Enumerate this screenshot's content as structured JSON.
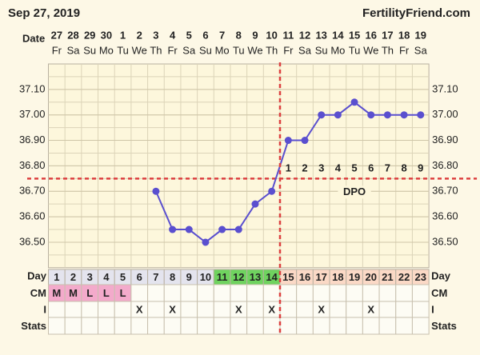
{
  "chart_data": {
    "type": "line",
    "title": "Sep 27, 2019",
    "source": "FertilityFriend.com",
    "date_label": "Date",
    "dates": [
      27,
      28,
      29,
      30,
      1,
      2,
      3,
      4,
      5,
      6,
      7,
      8,
      9,
      10,
      11,
      12,
      13,
      14,
      15,
      16,
      17,
      18,
      19
    ],
    "weekdays": [
      "Fr",
      "Sa",
      "Su",
      "Mo",
      "Tu",
      "We",
      "Th",
      "Fr",
      "Sa",
      "Su",
      "Mo",
      "Tu",
      "We",
      "Th",
      "Fr",
      "Sa",
      "Su",
      "Mo",
      "Tu",
      "We",
      "Th",
      "Fr",
      "Sa"
    ],
    "x_label": "Day",
    "x": [
      1,
      2,
      3,
      4,
      5,
      6,
      7,
      8,
      9,
      10,
      11,
      12,
      13,
      14,
      15,
      16,
      17,
      18,
      19,
      20,
      21,
      22,
      23
    ],
    "series": [
      {
        "color": "#5a4fcf",
        "values": [
          null,
          null,
          null,
          null,
          null,
          null,
          36.7,
          36.55,
          36.55,
          36.5,
          36.55,
          36.55,
          36.65,
          36.7,
          36.9,
          36.9,
          37.0,
          37.0,
          37.05,
          37.0,
          37.0,
          37.0,
          37.0
        ]
      }
    ],
    "ylim": [
      36.4,
      37.2
    ],
    "yticks": [
      {
        "value": 36.5,
        "label": "36.50"
      },
      {
        "value": 36.6,
        "label": "36.60"
      },
      {
        "value": 36.7,
        "label": "36.70"
      },
      {
        "value": 36.8,
        "label": "36.80"
      },
      {
        "value": 36.9,
        "label": "36.90"
      },
      {
        "value": 37.0,
        "label": "37.00"
      },
      {
        "value": 37.1,
        "label": "37.10"
      }
    ],
    "coverline": 36.75,
    "coverline_color": "#dd4040",
    "ovulation_day": 14,
    "dpo_label": "DPO",
    "dpo": [
      1,
      2,
      3,
      4,
      5,
      6,
      7,
      8,
      9
    ],
    "day_row_color": "#e4e4ee",
    "day_highlights": [
      {
        "from": 11,
        "to": 14,
        "color": "#6fd35f"
      },
      {
        "from": 15,
        "to": 23,
        "color": "#fbd9c6"
      }
    ],
    "rows": [
      {
        "name": "CM",
        "cell_color": "#f3aacb",
        "values": [
          "M",
          "M",
          "L",
          "L",
          "L",
          null,
          null,
          null,
          null,
          null,
          null,
          null,
          null,
          null,
          null,
          null,
          null,
          null,
          null,
          null,
          null,
          null,
          null
        ]
      },
      {
        "name": "I",
        "values": [
          null,
          null,
          null,
          null,
          null,
          "X",
          null,
          "X",
          null,
          null,
          null,
          "X",
          null,
          "X",
          null,
          null,
          "X",
          null,
          null,
          "X",
          null,
          null,
          null
        ]
      },
      {
        "name": "Stats",
        "values": [
          null,
          null,
          null,
          null,
          null,
          null,
          null,
          null,
          null,
          null,
          null,
          null,
          null,
          null,
          null,
          null,
          null,
          null,
          null,
          null,
          null,
          null,
          null
        ]
      }
    ]
  }
}
